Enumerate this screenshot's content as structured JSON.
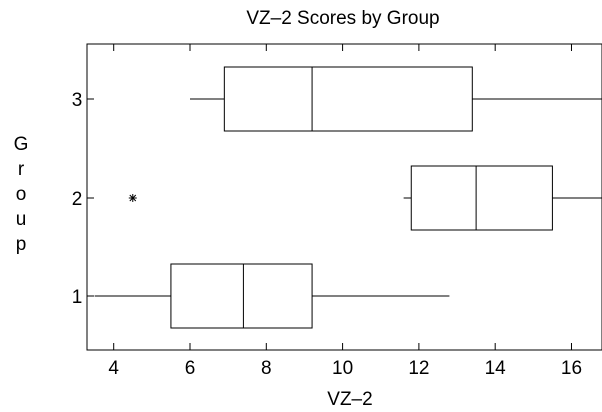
{
  "chart_data": {
    "type": "boxplot",
    "orientation": "horizontal",
    "title": "VZ–2 Scores by Group",
    "xlabel": "VZ–2",
    "ylabel": "Group",
    "xlim": [
      3.3,
      16.8
    ],
    "x_ticks": [
      4,
      6,
      8,
      10,
      12,
      14,
      16
    ],
    "categories": [
      "1",
      "2",
      "3"
    ],
    "series": [
      {
        "group": "1",
        "whisker_low": 3.5,
        "q1": 5.5,
        "median": 7.4,
        "q3": 9.2,
        "whisker_high": 12.8,
        "outliers": []
      },
      {
        "group": "2",
        "whisker_low": 11.6,
        "q1": 11.8,
        "median": 13.5,
        "q3": 15.5,
        "whisker_high": 16.8,
        "outliers": [
          4.5
        ]
      },
      {
        "group": "3",
        "whisker_low": 6.0,
        "q1": 6.9,
        "median": 9.2,
        "q3": 13.4,
        "whisker_high": 16.8,
        "outliers": []
      }
    ],
    "grid": false,
    "legend": "none"
  }
}
